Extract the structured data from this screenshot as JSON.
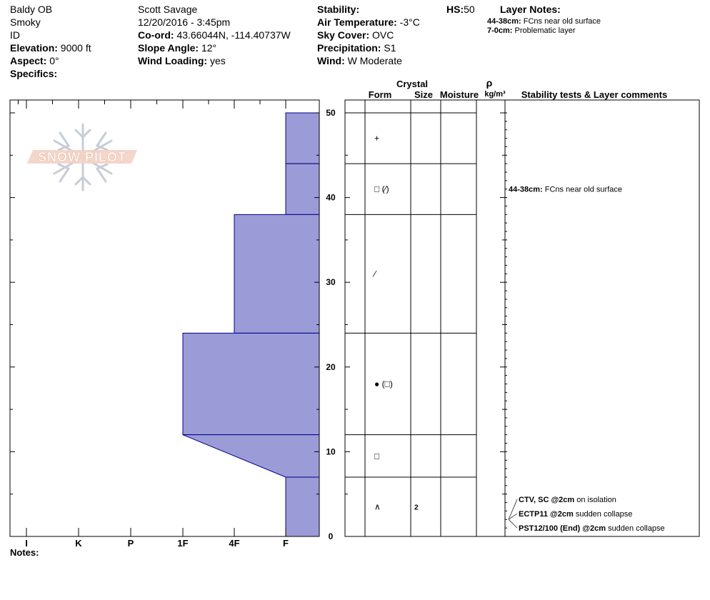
{
  "header": {
    "col1": {
      "location": "Baldy OB",
      "range": "Smoky",
      "state": "ID",
      "elevation_label": "Elevation:",
      "elevation_value": "9000 ft",
      "aspect_label": "Aspect:",
      "aspect_value": "0°",
      "specifics_label": "Specifics:"
    },
    "col2": {
      "observer": "Scott Savage",
      "datetime": "12/20/2016 - 3:45pm",
      "coord_label": "Co-ord:",
      "coord_value": "43.66044N, -114.40737W",
      "slope_label": "Slope Angle:",
      "slope_value": "12°",
      "wind_loading_label": "Wind Loading:",
      "wind_loading_value": "yes"
    },
    "col3": {
      "stability_label": "Stability:",
      "stability_value": "",
      "air_temp_label": "Air Temperature:",
      "air_temp_value": "-3°C",
      "sky_label": "Sky Cover:",
      "sky_value": "OVC",
      "precip_label": "Precipitation:",
      "precip_value": "S1",
      "wind_label": "Wind:",
      "wind_value": "W Moderate"
    },
    "hs_label": "HS:",
    "hs_value": "50",
    "layer_notes_title": "Layer Notes:",
    "layer_notes": [
      {
        "range": "44-38cm:",
        "text": "FCns near old surface"
      },
      {
        "range": "7-0cm:",
        "text": "Problematic layer"
      }
    ]
  },
  "logo_text": "SNOW PILOT",
  "columns": {
    "crystal": "Crystal",
    "form": "Form",
    "size": "Size",
    "moisture": "Moisture",
    "rho": "ρ",
    "density_unit": "kg/m³",
    "comments": "Stability tests & Layer comments"
  },
  "notes_label": "Notes:",
  "chart_data": {
    "type": "area",
    "xlabel": "",
    "ylabel": "",
    "x_categories": [
      "I",
      "K",
      "P",
      "1F",
      "4F",
      "F"
    ],
    "ylim": [
      0,
      50
    ],
    "y_ticks": [
      0,
      10,
      20,
      30,
      40,
      50
    ],
    "hardness_profile": [
      {
        "top": 50,
        "bottom": 44,
        "hardness_top": "F",
        "hardness_bottom": "F"
      },
      {
        "top": 44,
        "bottom": 38,
        "hardness_top": "F",
        "hardness_bottom": "F"
      },
      {
        "top": 38,
        "bottom": 24,
        "hardness_top": "4F",
        "hardness_bottom": "4F"
      },
      {
        "top": 24,
        "bottom": 12,
        "hardness_top": "1F",
        "hardness_bottom": "1F"
      },
      {
        "top": 12,
        "bottom": 7,
        "hardness_top": "1F",
        "hardness_bottom": "F"
      },
      {
        "top": 7,
        "bottom": 0,
        "hardness_top": "F",
        "hardness_bottom": "F"
      }
    ],
    "layer_boundaries": [
      50,
      44,
      38,
      24,
      12,
      7,
      0
    ],
    "layers": [
      {
        "top": 50,
        "bottom": 44,
        "form": "+",
        "size": ""
      },
      {
        "top": 44,
        "bottom": 38,
        "form": "□ (⁄)",
        "size": ""
      },
      {
        "top": 38,
        "bottom": 24,
        "form": "⁄",
        "size": ""
      },
      {
        "top": 24,
        "bottom": 12,
        "form": "● (□)",
        "size": ""
      },
      {
        "top": 12,
        "bottom": 7,
        "form": "□",
        "size": ""
      },
      {
        "top": 7,
        "bottom": 0,
        "form": "∧",
        "size": "2"
      }
    ],
    "layer_comments": [
      {
        "depth": 41,
        "range": "44-38cm:",
        "text": "FCns near old surface"
      }
    ],
    "stability_tests": [
      {
        "depth": 2,
        "test": "CTV, SC @2cm",
        "result": "on isolation"
      },
      {
        "depth": 2,
        "test": "ECTP11 @2cm",
        "result": "sudden collapse"
      },
      {
        "depth": 2,
        "test": "PST12/100 (End) @2cm",
        "result": "sudden collapse"
      }
    ],
    "colors": {
      "fill": "#9b9bd7",
      "stroke": "#00008b"
    }
  }
}
